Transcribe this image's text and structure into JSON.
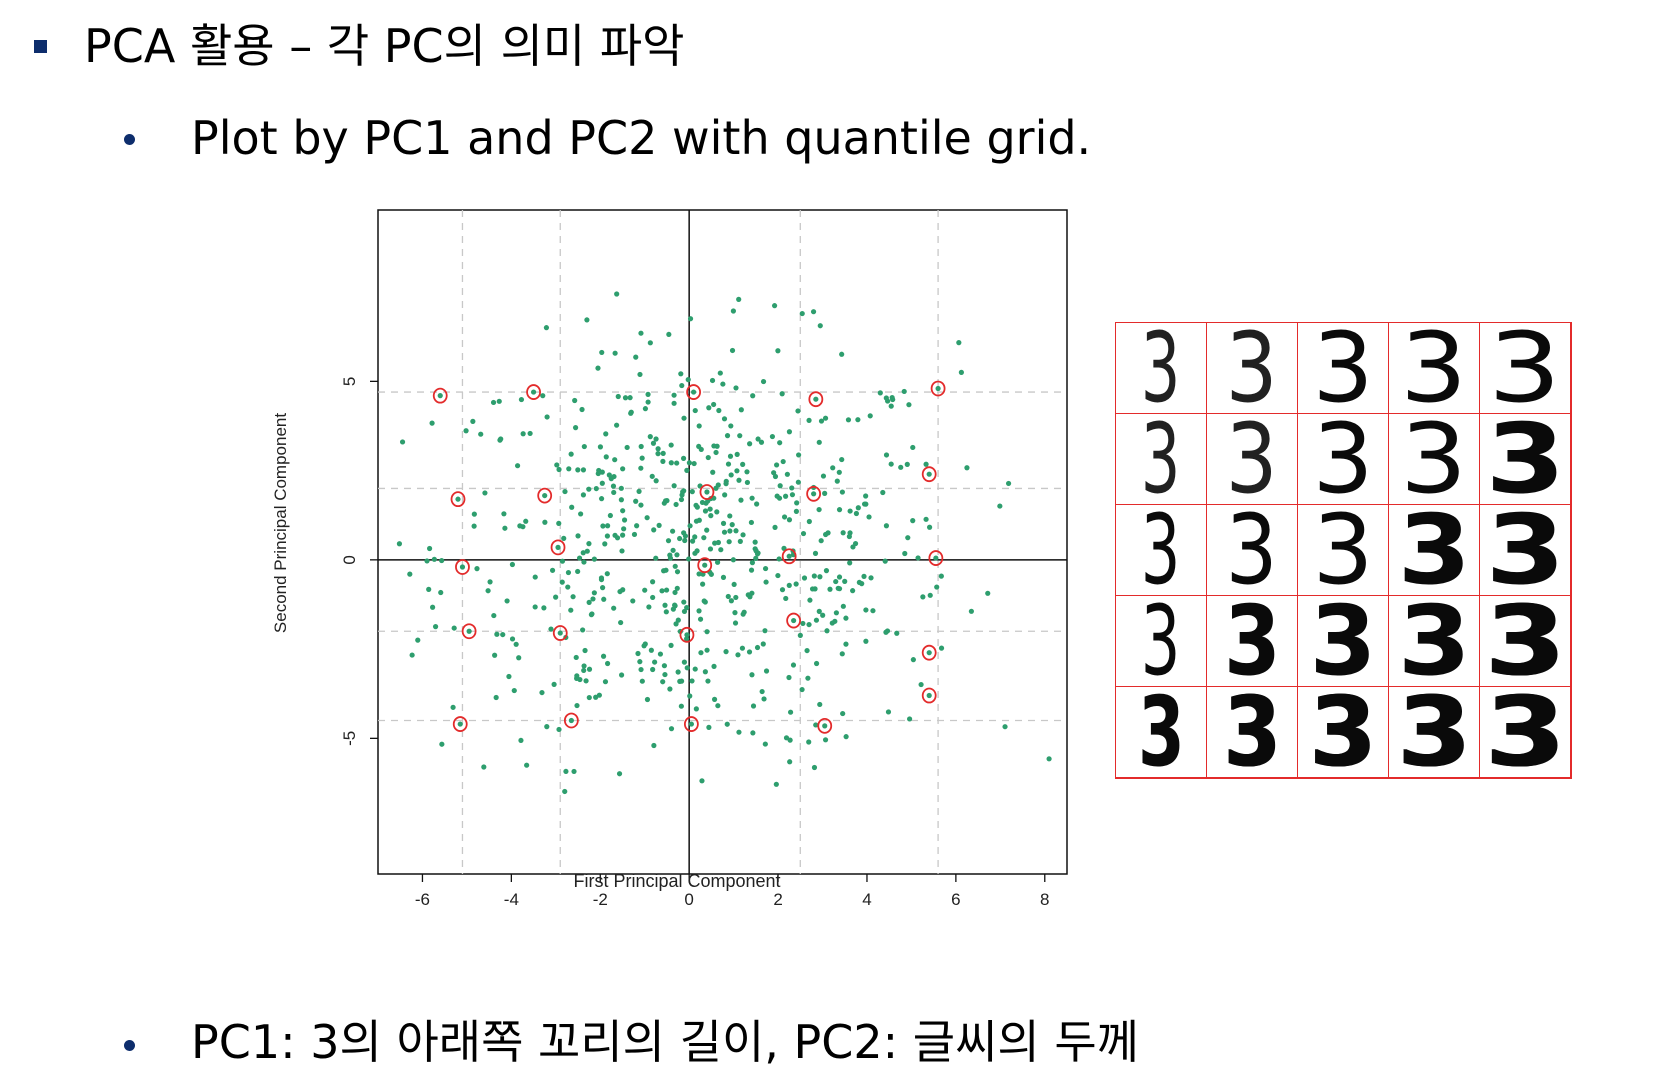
{
  "slide": {
    "title": "PCA 활용 – 각 PC의 의미 파악",
    "subtitle": "Plot by PC1 and PC2 with quantile grid.",
    "conclusion": "PC1: 3의 아래쪽 꼬리의 길이, PC2: 글씨의 두께"
  },
  "chart_data": {
    "type": "scatter",
    "xlabel": "First Principal Component",
    "ylabel": "Second Principal Component",
    "xlim": [
      -7,
      8.5
    ],
    "ylim": [
      -8.8,
      9.8
    ],
    "xticks": [
      -6,
      -4,
      -2,
      0,
      2,
      4,
      6,
      8
    ],
    "yticks": [
      -5,
      0,
      5
    ],
    "xtick_labels": [
      "-6",
      "-4",
      "-2",
      "0",
      "2",
      "4",
      "6",
      "8"
    ],
    "ytick_labels": [
      "-5",
      "0",
      "5"
    ],
    "quantile_grid_x": [
      -5.1,
      -2.9,
      0.1,
      2.5,
      5.6
    ],
    "quantile_grid_y": [
      -4.5,
      -2.0,
      0.0,
      2.0,
      4.7
    ],
    "circled_points": [
      [
        -5.6,
        4.6
      ],
      [
        -3.5,
        4.7
      ],
      [
        0.1,
        4.7
      ],
      [
        2.85,
        4.5
      ],
      [
        5.6,
        4.8
      ],
      [
        -5.2,
        1.7
      ],
      [
        -3.25,
        1.8
      ],
      [
        0.4,
        1.9
      ],
      [
        2.8,
        1.85
      ],
      [
        5.4,
        2.4
      ],
      [
        -5.1,
        -0.2
      ],
      [
        -2.95,
        0.35
      ],
      [
        0.35,
        -0.15
      ],
      [
        2.25,
        0.1
      ],
      [
        5.55,
        0.05
      ],
      [
        -4.95,
        -2.0
      ],
      [
        -2.9,
        -2.05
      ],
      [
        -0.05,
        -2.1
      ],
      [
        2.35,
        -1.7
      ],
      [
        5.4,
        -2.6
      ],
      [
        -5.15,
        -4.6
      ],
      [
        -2.65,
        -4.5
      ],
      [
        0.05,
        -4.6
      ],
      [
        3.05,
        -4.65
      ],
      [
        5.4,
        -3.8
      ]
    ],
    "point_color": "#2e9e6e",
    "circle_color": "#e32b2b",
    "grid": "dashed quantile lines"
  },
  "digit_grid": {
    "rows": 5,
    "cols": 5,
    "glyph": "3",
    "border_color": "#e32b2b",
    "weights": [
      [
        200,
        300,
        400,
        500,
        600
      ],
      [
        200,
        300,
        400,
        600,
        700
      ],
      [
        400,
        500,
        600,
        700,
        800
      ],
      [
        600,
        700,
        700,
        800,
        900
      ],
      [
        800,
        900,
        900,
        900,
        900
      ]
    ],
    "stretch": [
      [
        0.65,
        0.85,
        1.0,
        1.1,
        1.2
      ],
      [
        0.65,
        0.85,
        1.0,
        1.1,
        1.2
      ],
      [
        0.65,
        0.85,
        1.0,
        1.1,
        1.2
      ],
      [
        0.65,
        0.85,
        1.0,
        1.1,
        1.2
      ],
      [
        0.7,
        0.85,
        1.0,
        1.1,
        1.2
      ]
    ]
  }
}
